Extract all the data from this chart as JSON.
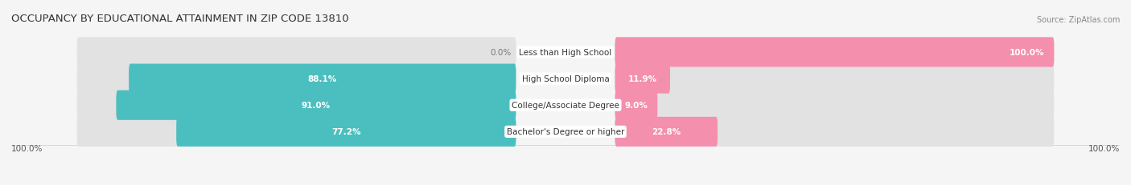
{
  "title": "OCCUPANCY BY EDUCATIONAL ATTAINMENT IN ZIP CODE 13810",
  "source": "Source: ZipAtlas.com",
  "categories": [
    "Less than High School",
    "High School Diploma",
    "College/Associate Degree",
    "Bachelor's Degree or higher"
  ],
  "owner_pct": [
    0.0,
    88.1,
    91.0,
    77.2
  ],
  "renter_pct": [
    100.0,
    11.9,
    9.0,
    22.8
  ],
  "owner_color": "#4BBFBF",
  "renter_color": "#F48FAE",
  "bg_color": "#f5f5f5",
  "bar_bg_color": "#e2e2e2",
  "title_fontsize": 9.5,
  "label_fontsize": 7.5,
  "source_fontsize": 7.0,
  "bottom_left_label": "100.0%",
  "bottom_right_label": "100.0%"
}
